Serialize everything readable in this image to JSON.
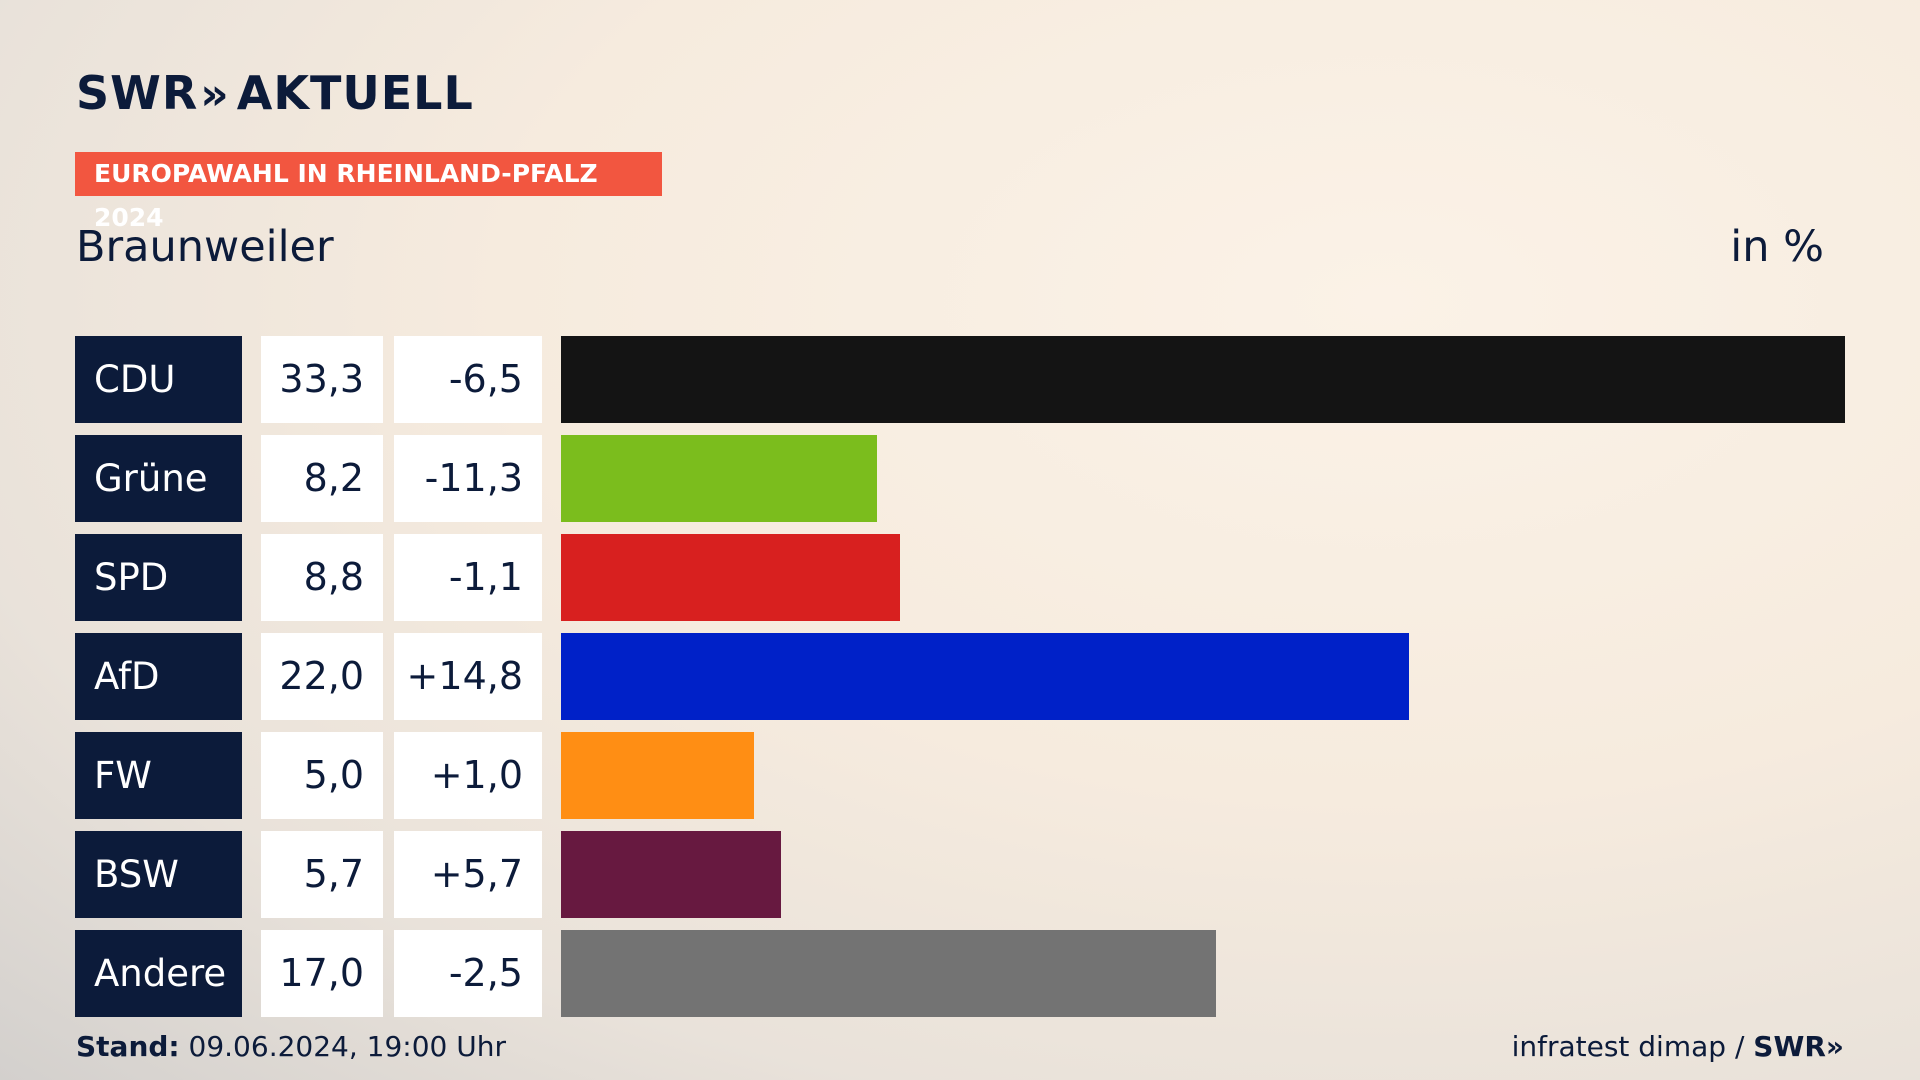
{
  "header": {
    "logo_text": "SWR",
    "logo_chevrons": "»",
    "logo_suffix": "AKTUELL",
    "tag": "EUROPAWAHL IN RHEINLAND-PFALZ 2024",
    "place": "Braunweiler",
    "unit": "in %"
  },
  "chart_data": {
    "type": "bar",
    "orientation": "horizontal",
    "categories": [
      "CDU",
      "Grüne",
      "SPD",
      "AfD",
      "FW",
      "BSW",
      "Andere"
    ],
    "values": [
      33.3,
      8.2,
      8.8,
      22.0,
      5.0,
      5.7,
      17.0
    ],
    "values_label": [
      "33,3",
      "8,2",
      "8,8",
      "22,0",
      "5,0",
      "5,7",
      "17,0"
    ],
    "changes_label": [
      "-6,5",
      "-11,3",
      "-1,1",
      "+14,8",
      "+1,0",
      "+5,7",
      "-2,5"
    ],
    "colors": [
      "#141414",
      "#7bbd1d",
      "#d8201f",
      "#0021c8",
      "#ff8e14",
      "#671940",
      "#737373"
    ],
    "xlim": [
      0,
      33.3
    ],
    "grid": false,
    "legend": "none"
  },
  "footer": {
    "stand_label": "Stand:",
    "stand_value": "09.06.2024, 19:00 Uhr",
    "source": "infratest dimap /",
    "source_logo": "SWR»"
  }
}
